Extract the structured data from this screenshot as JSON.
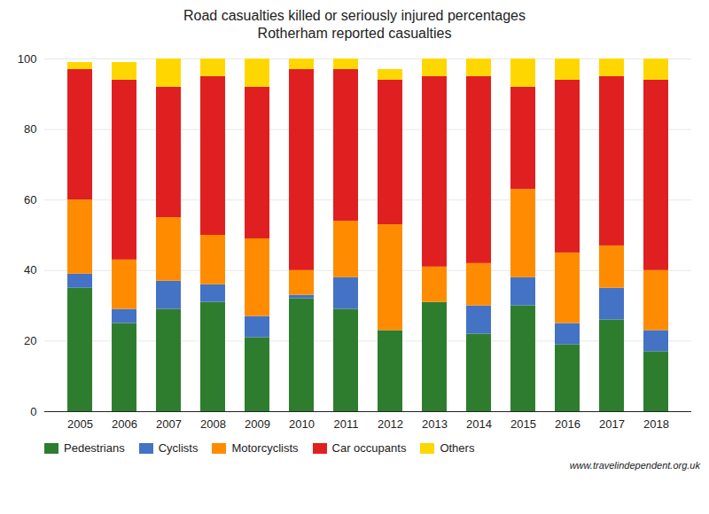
{
  "chart_data": {
    "type": "bar",
    "stacked": true,
    "title": "Road casualties killed or seriously injured percentages",
    "subtitle": "Rotherham reported casualties",
    "categories": [
      "2005",
      "2006",
      "2007",
      "2008",
      "2009",
      "2010",
      "2011",
      "2012",
      "2013",
      "2014",
      "2015",
      "2016",
      "2017",
      "2018"
    ],
    "series": [
      {
        "name": "Pedestrians",
        "color": "#2e7d2e",
        "values": [
          35,
          25,
          29,
          31,
          21,
          32,
          29,
          23,
          31,
          22,
          30,
          19,
          26,
          17
        ]
      },
      {
        "name": "Cyclists",
        "color": "#4472c4",
        "values": [
          4,
          4,
          8,
          5,
          6,
          1,
          9,
          0,
          0,
          8,
          8,
          6,
          9,
          6
        ]
      },
      {
        "name": "Motorcyclists",
        "color": "#ff8c00",
        "values": [
          21,
          14,
          18,
          14,
          22,
          7,
          16,
          30,
          10,
          12,
          25,
          20,
          12,
          17
        ]
      },
      {
        "name": "Car occupants",
        "color": "#e02020",
        "values": [
          37,
          51,
          37,
          45,
          43,
          57,
          43,
          41,
          54,
          53,
          29,
          49,
          48,
          54
        ]
      },
      {
        "name": "Others",
        "color": "#ffd700",
        "values": [
          2,
          5,
          8,
          5,
          8,
          3,
          3,
          3,
          5,
          5,
          8,
          6,
          5,
          6
        ]
      }
    ],
    "ylim": [
      0,
      100
    ],
    "yticks": [
      0,
      20,
      40,
      60,
      80,
      100
    ],
    "grid": true,
    "legend": "bottom",
    "annotations": [
      "www.travelindependent.org.uk"
    ]
  }
}
